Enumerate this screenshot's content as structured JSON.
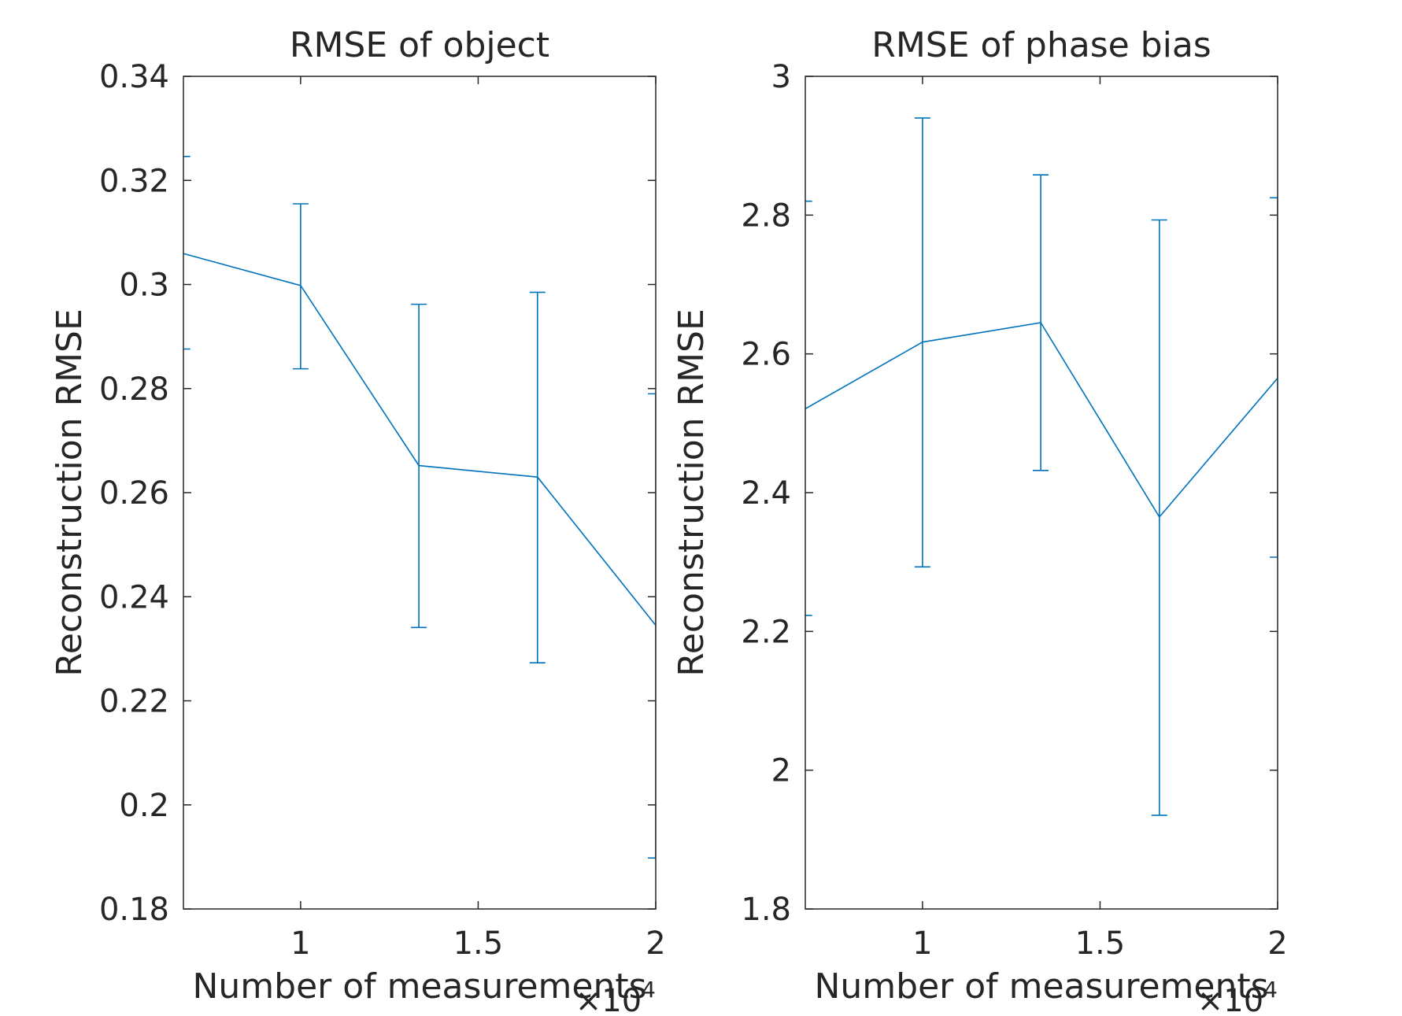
{
  "chart_data": [
    {
      "type": "line",
      "title": "RMSE of object",
      "xlabel": "Number of measurements",
      "ylabel": "Reconstruction RMSE",
      "x_exponent_label": "×10",
      "x_exponent_power": "4",
      "xlim": [
        0.67,
        2.0
      ],
      "ylim": [
        0.18,
        0.34
      ],
      "xticks": [
        1,
        1.5,
        2
      ],
      "xtick_labels": [
        "1",
        "1.5",
        "2"
      ],
      "yticks": [
        0.18,
        0.2,
        0.22,
        0.24,
        0.26,
        0.28,
        0.3,
        0.32,
        0.34
      ],
      "ytick_labels": [
        "0.18",
        "0.2",
        "0.22",
        "0.24",
        "0.26",
        "0.28",
        "0.3",
        "0.32",
        "0.34"
      ],
      "grid": false,
      "series": [
        {
          "color": "#0072BD",
          "x": [
            0.667,
            1.0,
            1.333,
            1.667,
            2.0
          ],
          "y": [
            0.306,
            0.2998,
            0.2652,
            0.263,
            0.2345
          ],
          "lower": [
            0.2876,
            0.2838,
            0.2341,
            0.2273,
            0.1898
          ],
          "upper": [
            0.3246,
            0.3155,
            0.2962,
            0.2985,
            0.279
          ]
        }
      ]
    },
    {
      "type": "line",
      "title": "RMSE of phase bias",
      "xlabel": "Number of measurements",
      "ylabel": "Reconstruction RMSE",
      "x_exponent_label": "×10",
      "x_exponent_power": "4",
      "xlim": [
        0.67,
        2.0
      ],
      "ylim": [
        1.8,
        3.0
      ],
      "xticks": [
        1,
        1.5,
        2
      ],
      "xtick_labels": [
        "1",
        "1.5",
        "2"
      ],
      "yticks": [
        1.8,
        2.0,
        2.2,
        2.4,
        2.6,
        2.8,
        3.0
      ],
      "ytick_labels": [
        "1.8",
        "2",
        "2.2",
        "2.4",
        "2.6",
        "2.8",
        "3"
      ],
      "grid": false,
      "series": [
        {
          "color": "#0072BD",
          "x": [
            0.667,
            1.0,
            1.333,
            1.667,
            2.0
          ],
          "y": [
            2.52,
            2.617,
            2.645,
            2.365,
            2.565
          ],
          "lower": [
            2.223,
            2.293,
            2.432,
            1.935,
            2.307
          ],
          "upper": [
            2.82,
            2.94,
            2.858,
            2.793,
            2.825
          ]
        }
      ]
    }
  ]
}
